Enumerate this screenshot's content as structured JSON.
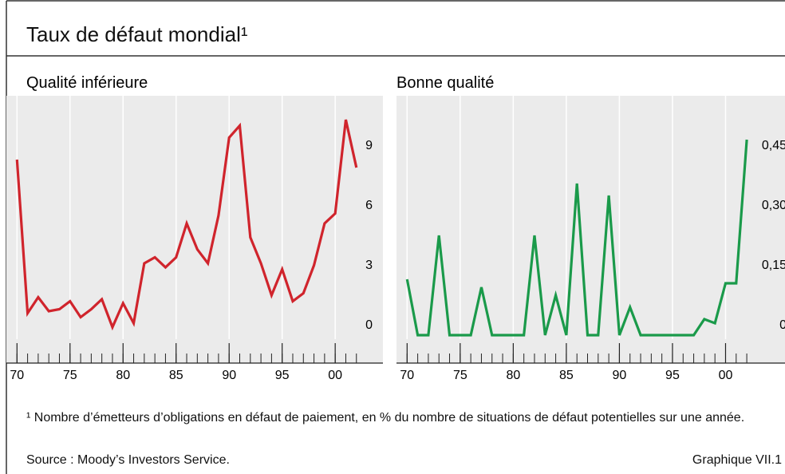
{
  "title": "Taux de défaut mondial¹",
  "chart_data": [
    {
      "type": "line",
      "subtitle": "Qualité inférieure",
      "x": [
        1970,
        1971,
        1972,
        1973,
        1974,
        1975,
        1976,
        1977,
        1978,
        1979,
        1980,
        1981,
        1982,
        1983,
        1984,
        1985,
        1986,
        1987,
        1988,
        1989,
        1990,
        1991,
        1992,
        1993,
        1994,
        1995,
        1996,
        1997,
        1998,
        1999,
        2000,
        2001,
        2002
      ],
      "values": [
        8.8,
        1.1,
        1.9,
        1.2,
        1.3,
        1.7,
        0.9,
        1.3,
        1.8,
        0.4,
        1.6,
        0.6,
        3.6,
        3.9,
        3.4,
        3.9,
        5.6,
        4.3,
        3.6,
        6.0,
        9.9,
        10.5,
        4.9,
        3.6,
        2.0,
        3.3,
        1.7,
        2.1,
        3.5,
        5.6,
        6.1,
        10.8,
        8.4
      ],
      "color": "#d0242c",
      "xlim": [
        1969,
        2004.5
      ],
      "xticks": [
        {
          "value": 1970,
          "label": "70"
        },
        {
          "value": 1975,
          "label": "75"
        },
        {
          "value": 1980,
          "label": "80"
        },
        {
          "value": 1985,
          "label": "85"
        },
        {
          "value": 1990,
          "label": "90"
        },
        {
          "value": 1995,
          "label": "95"
        },
        {
          "value": 2000,
          "label": "00"
        }
      ],
      "ylim": [
        -0.2,
        12
      ],
      "yticks": [
        0,
        3,
        6,
        9
      ]
    },
    {
      "type": "line",
      "subtitle": "Bonne qualité",
      "x": [
        1970,
        1971,
        1972,
        1973,
        1974,
        1975,
        1976,
        1977,
        1978,
        1979,
        1980,
        1981,
        1982,
        1983,
        1984,
        1985,
        1986,
        1987,
        1988,
        1989,
        1990,
        1991,
        1992,
        1993,
        1994,
        1995,
        1996,
        1997,
        1998,
        1999,
        2000,
        2001,
        2002
      ],
      "values": [
        0.14,
        0,
        0,
        0.25,
        0,
        0,
        0,
        0.12,
        0,
        0,
        0,
        0,
        0.25,
        0,
        0.1,
        0,
        0.38,
        0,
        0,
        0.35,
        0,
        0.07,
        0,
        0,
        0,
        0,
        0,
        0,
        0.04,
        0.03,
        0.13,
        0.13,
        0.49
      ],
      "color": "#1a9a4a",
      "xlim": [
        1969,
        2005.6
      ],
      "xticks": [
        {
          "value": 1970,
          "label": "70"
        },
        {
          "value": 1975,
          "label": "75"
        },
        {
          "value": 1980,
          "label": "80"
        },
        {
          "value": 1985,
          "label": "85"
        },
        {
          "value": 1990,
          "label": "90"
        },
        {
          "value": 1995,
          "label": "95"
        },
        {
          "value": 2000,
          "label": "00"
        }
      ],
      "ylim": [
        -0.01,
        0.6
      ],
      "yticks": [
        0,
        {
          "value": 0.15,
          "label": "0,15"
        },
        {
          "value": 0.3,
          "label": "0,30"
        },
        {
          "value": 0.45,
          "label": "0,45"
        }
      ]
    }
  ],
  "footnote": "¹ Nombre d’émetteurs d’obligations en défaut de paiement, en % du nombre de situations de défaut potentielles sur une année.",
  "source": "Source : Moody’s Investors Service.",
  "figure_label": "Graphique VII.1"
}
